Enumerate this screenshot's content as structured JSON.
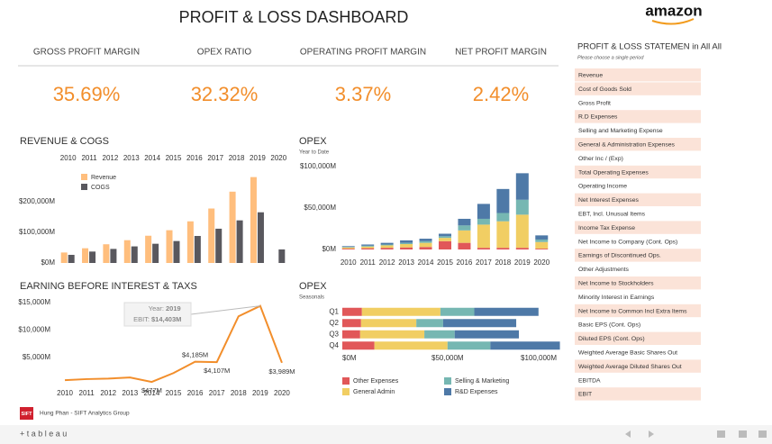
{
  "header": {
    "title": "PROFIT & LOSS DASHBOARD",
    "logo": "amazon"
  },
  "kpis": [
    {
      "label": "GROSS PROFIT MARGIN",
      "value": "35.69%"
    },
    {
      "label": "OPEX RATIO",
      "value": "32.32%"
    },
    {
      "label": "OPERATING PROFIT MARGIN",
      "value": "3.37%"
    },
    {
      "label": "NET PROFIT MARGIN",
      "value": "2.42%"
    }
  ],
  "chart_data": [
    {
      "type": "bar",
      "title": "REVENUE & COGS",
      "categories": [
        "2010",
        "2011",
        "2012",
        "2013",
        "2014",
        "2015",
        "2016",
        "2017",
        "2018",
        "2019",
        "2020"
      ],
      "series": [
        {
          "name": "Revenue",
          "color": "#ffbe7d",
          "values": [
            34204,
            48077,
            61093,
            74452,
            88988,
            107006,
            135987,
            177866,
            232887,
            280522,
            null
          ]
        },
        {
          "name": "COGS",
          "color": "#59585e",
          "values": [
            26561,
            37288,
            45971,
            54181,
            62752,
            71651,
            88265,
            111934,
            139156,
            165536,
            44257
          ]
        }
      ],
      "ylim": [
        0,
        300000
      ],
      "yticks": [
        {
          "value": 0,
          "label": "$0M"
        },
        {
          "value": 100000,
          "label": "$100,000M"
        },
        {
          "value": 200000,
          "label": "$200,000M"
        }
      ],
      "legend": "top-left"
    },
    {
      "type": "stacked_bar",
      "title": "OPEX",
      "subtitle": "Year to Date",
      "categories": [
        "2010",
        "2011",
        "2012",
        "2013",
        "2014",
        "2015",
        "2016",
        "2017",
        "2018",
        "2019",
        "2020"
      ],
      "series": [
        {
          "color": "#e15759",
          "values": [
            1000,
            1500,
            2000,
            2500,
            3000,
            10000,
            8000,
            2000,
            2000,
            2000,
            1000
          ]
        },
        {
          "color": "#f1ce63",
          "values": [
            1500,
            2000,
            3000,
            4000,
            5000,
            4000,
            15000,
            28000,
            32000,
            40000,
            8000
          ]
        },
        {
          "color": "#76b7b2",
          "values": [
            500,
            1000,
            1000,
            1500,
            2000,
            2000,
            6000,
            7000,
            10000,
            18000,
            3000
          ]
        },
        {
          "color": "#4e79a7",
          "values": [
            1000,
            1500,
            2000,
            3000,
            3000,
            3000,
            8000,
            18000,
            29000,
            32000,
            5000
          ]
        }
      ],
      "ylim": [
        0,
        100000
      ],
      "yticks": [
        {
          "value": 0,
          "label": "$0M"
        },
        {
          "value": 50000,
          "label": "$50,000M"
        },
        {
          "value": 100000,
          "label": "$100,000M"
        }
      ]
    },
    {
      "type": "line",
      "title": "EARNING BEFORE INTEREST & TAXS",
      "categories": [
        "2010",
        "2011",
        "2012",
        "2013",
        "2014",
        "2015",
        "2016",
        "2017",
        "2018",
        "2019",
        "2020"
      ],
      "color": "#f28e2b",
      "values": [
        800,
        1000,
        1100,
        1300,
        477,
        2100,
        4185,
        4107,
        12500,
        14403,
        3989
      ],
      "value_labels": [
        null,
        null,
        null,
        null,
        "$477M",
        null,
        "$4,185M",
        "$4,107M",
        null,
        null,
        "$3,989M"
      ],
      "ylim": [
        0,
        16000
      ],
      "yticks": [
        {
          "value": 5000,
          "label": "$5,000M"
        },
        {
          "value": 10000,
          "label": "$10,000M"
        },
        {
          "value": 15000,
          "label": "$15,000M"
        }
      ],
      "tooltip": {
        "index": 9,
        "year_label": "Year:",
        "year": "2019",
        "value_label": "EBIT:",
        "value": "$14,403M"
      }
    },
    {
      "type": "stacked_barh",
      "title": "OPEX",
      "subtitle": "Seasonals",
      "categories": [
        "Q1",
        "Q2",
        "Q3",
        "Q4"
      ],
      "series": [
        {
          "name": "Other Expenses",
          "color": "#e15759",
          "values": [
            11000,
            10500,
            10000,
            18000
          ]
        },
        {
          "name": "General Admin",
          "color": "#f1ce63",
          "values": [
            44000,
            31000,
            36000,
            41000
          ]
        },
        {
          "name": "Selling & Marketing",
          "color": "#76b7b2",
          "values": [
            19000,
            15000,
            17000,
            24000
          ]
        },
        {
          "name": "R&D Expenses",
          "color": "#4e79a7",
          "values": [
            36000,
            41000,
            36000,
            39000
          ]
        }
      ],
      "xlim": [
        0,
        120000
      ],
      "xticks": [
        {
          "value": 0,
          "label": "$0M"
        },
        {
          "value": 50000,
          "label": "$50,000M"
        },
        {
          "value": 100000,
          "label": "$100,000M"
        }
      ],
      "legend": "bottom"
    }
  ],
  "statement": {
    "title": "PROFIT & LOSS STATEMEN in All All",
    "subtitle": "Please choose a single period",
    "rows": [
      "Revenue",
      "Cost of Goods Sold",
      "Gross Profit",
      "R.D Expenses",
      "Selling and Marketing Expense",
      "General & Administration Expenses",
      "Other Inc / (Exp)",
      "Total Operating Expenses",
      "Operating Income",
      "Net Interest Expenses",
      "EBT, Incl. Unusual Items",
      "Income Tax Expense",
      "Net Income to Company (Cont. Ops)",
      "Earnings of Discontinued Ops.",
      "Other Adjustments",
      "Net Income to Stockholders",
      "Minority Interest in Earnings",
      "Net Income to Common Incl Extra Items",
      "Basic EPS (Cont. Ops)",
      "Diluted EPS (Cont. Ops)",
      "Weighted Average Basic Shares Out",
      "Weighted Average Diluted Shares Out",
      "EBITDA",
      "EBIT"
    ]
  },
  "footer": {
    "logo": "SIFT",
    "author": "Hung Phan - SIFT Analytics Group",
    "brand": "+ t a b l e a u"
  }
}
